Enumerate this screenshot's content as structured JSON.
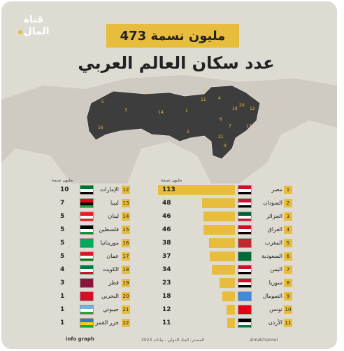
{
  "logo": {
    "line1": "قناة",
    "line2": "المال"
  },
  "header": {
    "total": "473 مليون نسمة",
    "title": "عدد سكان العالم العربي"
  },
  "units": {
    "left": "مليون نسمة",
    "right": "مليون نسمة"
  },
  "colors": {
    "accent": "#e8bd3d",
    "background": "#dedbd3",
    "map": "#3d3d3d"
  },
  "right_list": [
    {
      "rank": "1",
      "name": "مصر",
      "value": "113",
      "v": 113
    },
    {
      "rank": "2",
      "name": "السودان",
      "value": "48",
      "v": 48
    },
    {
      "rank": "3",
      "name": "الجزائر",
      "value": "46",
      "v": 46
    },
    {
      "rank": "4",
      "name": "العراق",
      "value": "46",
      "v": 46
    },
    {
      "rank": "5",
      "name": "المغرب",
      "value": "38",
      "v": 38
    },
    {
      "rank": "6",
      "name": "السعودية",
      "value": "37",
      "v": 37
    },
    {
      "rank": "7",
      "name": "اليمن",
      "value": "34",
      "v": 34
    },
    {
      "rank": "8",
      "name": "سوريا",
      "value": "23",
      "v": 23
    },
    {
      "rank": "9",
      "name": "الصومال",
      "value": "18",
      "v": 18
    },
    {
      "rank": "10",
      "name": "تونس",
      "value": "12",
      "v": 12
    },
    {
      "rank": "11",
      "name": "الأردن",
      "value": "11",
      "v": 11
    }
  ],
  "left_list": [
    {
      "rank": "12",
      "name": "الإمارات",
      "value": "10"
    },
    {
      "rank": "13",
      "name": "ليبيا",
      "value": "7"
    },
    {
      "rank": "14",
      "name": "لبنان",
      "value": "5"
    },
    {
      "rank": "15",
      "name": "فلسطين",
      "value": "5"
    },
    {
      "rank": "16",
      "name": "موريتانيا",
      "value": "5"
    },
    {
      "rank": "17",
      "name": "عمان",
      "value": "5"
    },
    {
      "rank": "18",
      "name": "الكويت",
      "value": "4"
    },
    {
      "rank": "19",
      "name": "قطر",
      "value": "3"
    },
    {
      "rank": "20",
      "name": "البحرين",
      "value": "1"
    },
    {
      "rank": "21",
      "name": "جيبوتي",
      "value": "1"
    },
    {
      "rank": "22",
      "name": "جزر القمر",
      "value": "1"
    }
  ],
  "footer": {
    "source": "المصدر: البنك الدولي - بيانات 2023",
    "handle": "almalchannel",
    "brand": "info graph"
  }
}
